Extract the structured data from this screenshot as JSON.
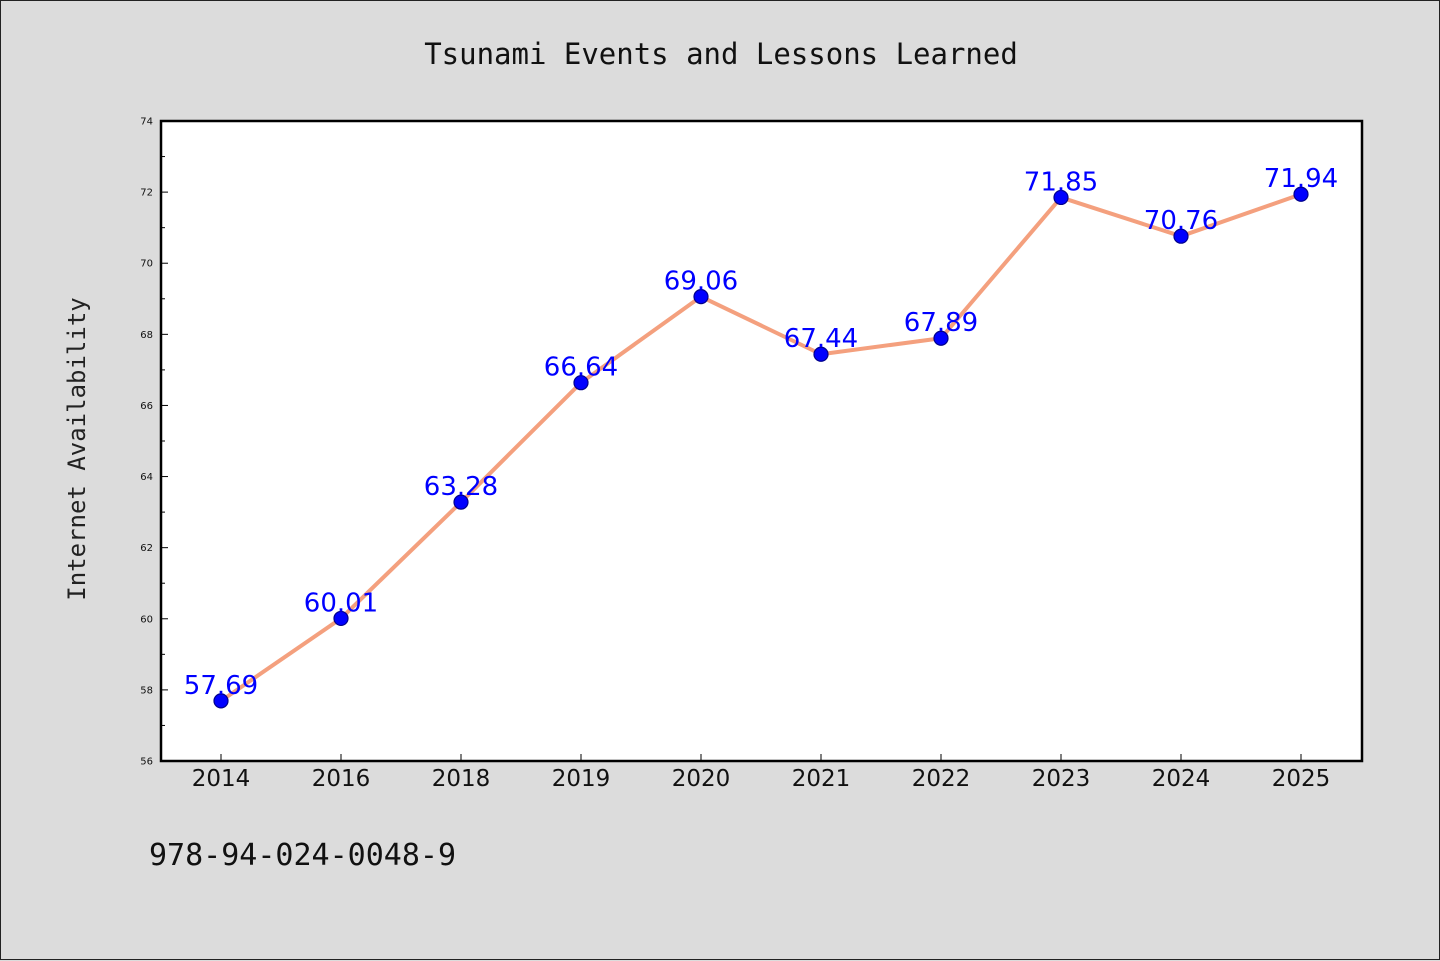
{
  "chart_data": {
    "type": "line",
    "title": "Tsunami Events and Lessons Learned",
    "xlabel": "",
    "ylabel": "Internet Availability",
    "categories": [
      "2014",
      "2016",
      "2018",
      "2019",
      "2020",
      "2021",
      "2022",
      "2023",
      "2024",
      "2025"
    ],
    "series": [
      {
        "values": [
          57.69,
          60.01,
          63.28,
          66.64,
          69.06,
          67.44,
          67.89,
          71.85,
          70.76,
          71.94
        ],
        "labels": [
          "57.69",
          "60.01",
          "63.28",
          "66.64",
          "69.06",
          "67.44",
          "67.89",
          "71.85",
          "70.76",
          "71.94"
        ]
      }
    ],
    "ylim": [
      56,
      74
    ],
    "yticks": [
      "56",
      "58",
      "60",
      "62",
      "64",
      "66",
      "68",
      "70",
      "72",
      "74"
    ],
    "grid": false,
    "legend": "none",
    "colors": {
      "line": "#f4a07e",
      "marker": "#0000ff",
      "marker_edge": "#00008b",
      "data_label": "#0000ff",
      "background": "#dcdcdc",
      "plot_background": "#ffffff"
    }
  },
  "footer": {
    "isbn": "978-94-024-0048-9"
  }
}
